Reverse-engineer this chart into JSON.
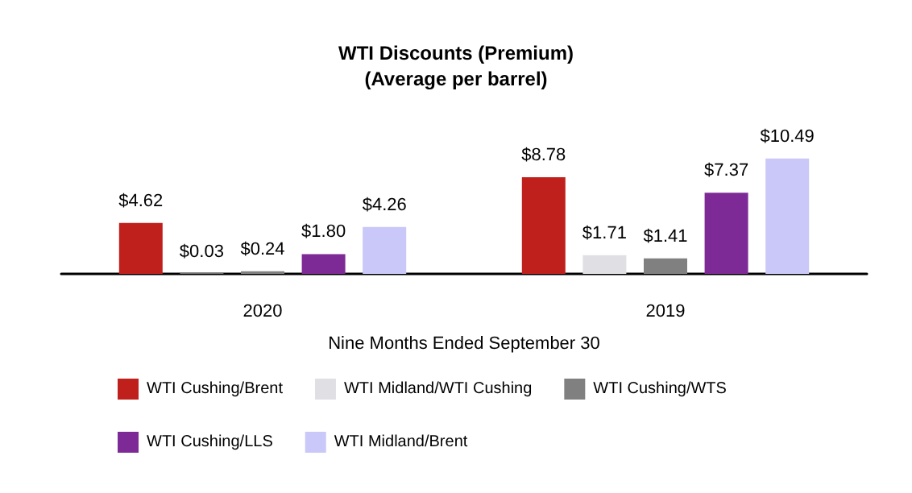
{
  "chart_data": {
    "type": "bar",
    "title": "WTI Discounts (Premium)",
    "subtitle": "(Average per barrel)",
    "xlabel": "Nine Months Ended September 30",
    "categories": [
      "2020",
      "2019"
    ],
    "series": [
      {
        "name": "WTI Cushing/Brent",
        "color": "#c0201c",
        "values": [
          4.62,
          8.78
        ],
        "value_labels": [
          "$4.62",
          "$8.78"
        ]
      },
      {
        "name": "WTI Midland/WTI Cushing",
        "color": "#e0dfe3",
        "values": [
          0.03,
          1.71
        ],
        "value_labels": [
          "$0.03",
          "$1.71"
        ]
      },
      {
        "name": "WTI Cushing/WTS",
        "color": "#808080",
        "values": [
          0.24,
          1.41
        ],
        "value_labels": [
          "$0.24",
          "$1.41"
        ]
      },
      {
        "name": "WTI Cushing/LLS",
        "color": "#7e2a96",
        "values": [
          1.8,
          7.37
        ],
        "value_labels": [
          "$1.80",
          "$7.37"
        ]
      },
      {
        "name": "WTI Midland/Brent",
        "color": "#c9c8f8",
        "values": [
          4.26,
          10.49
        ],
        "value_labels": [
          "$4.26",
          "$10.49"
        ]
      }
    ],
    "legend": "bottom"
  }
}
